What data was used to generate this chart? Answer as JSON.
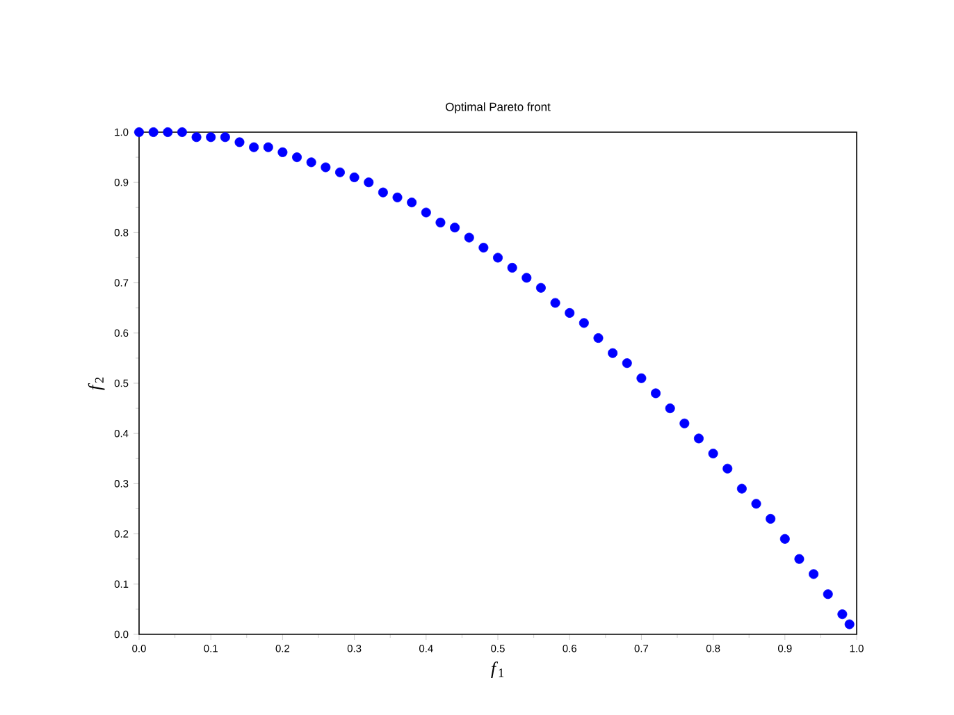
{
  "chart_data": {
    "type": "scatter",
    "title": "Optimal Pareto front",
    "xlabel": "*f*$_{1}$",
    "ylabel": "*f*$_{2}$",
    "x": [
      0,
      0.02,
      0.04,
      0.06,
      0.08,
      0.1,
      0.12,
      0.14,
      0.16,
      0.18,
      0.2,
      0.22,
      0.24,
      0.26,
      0.28,
      0.3,
      0.32,
      0.34,
      0.36,
      0.38,
      0.4,
      0.42,
      0.44,
      0.46,
      0.48,
      0.5,
      0.52,
      0.54,
      0.56,
      0.58,
      0.6,
      0.62,
      0.64,
      0.66,
      0.68,
      0.7,
      0.72,
      0.74,
      0.76,
      0.78,
      0.8,
      0.82,
      0.84,
      0.86,
      0.88,
      0.9,
      0.92,
      0.94,
      0.96,
      0.98,
      0.99
    ],
    "series": [
      {
        "color": "#0000ff",
        "values": [
          1.0,
          1.0,
          1.0,
          1.0,
          0.99,
          0.99,
          0.99,
          0.98,
          0.97,
          0.97,
          0.96,
          0.95,
          0.94,
          0.93,
          0.92,
          0.91,
          0.9,
          0.88,
          0.87,
          0.86,
          0.84,
          0.82,
          0.81,
          0.79,
          0.77,
          0.75,
          0.73,
          0.71,
          0.69,
          0.66,
          0.64,
          0.62,
          0.59,
          0.56,
          0.54,
          0.51,
          0.48,
          0.45,
          0.42,
          0.39,
          0.36,
          0.33,
          0.29,
          0.26,
          0.23,
          0.19,
          0.15,
          0.12,
          0.08,
          0.04,
          0.02
        ]
      }
    ],
    "marker": "circle",
    "xlim": [
      0,
      1
    ],
    "ylim": [
      0,
      1
    ],
    "xticks": [
      {
        "value": 0,
        "label": "0.0"
      },
      0.1,
      0.2,
      0.3,
      0.4,
      0.5,
      0.6,
      0.7,
      0.8,
      0.9,
      {
        "value": 1,
        "label": "1.0"
      }
    ],
    "yticks": [
      {
        "value": 0,
        "label": "0.0"
      },
      0.1,
      0.2,
      0.3,
      0.4,
      0.5,
      0.6,
      0.7,
      0.8,
      0.9,
      {
        "value": 1,
        "label": "1.0"
      }
    ],
    "grid": false
  }
}
